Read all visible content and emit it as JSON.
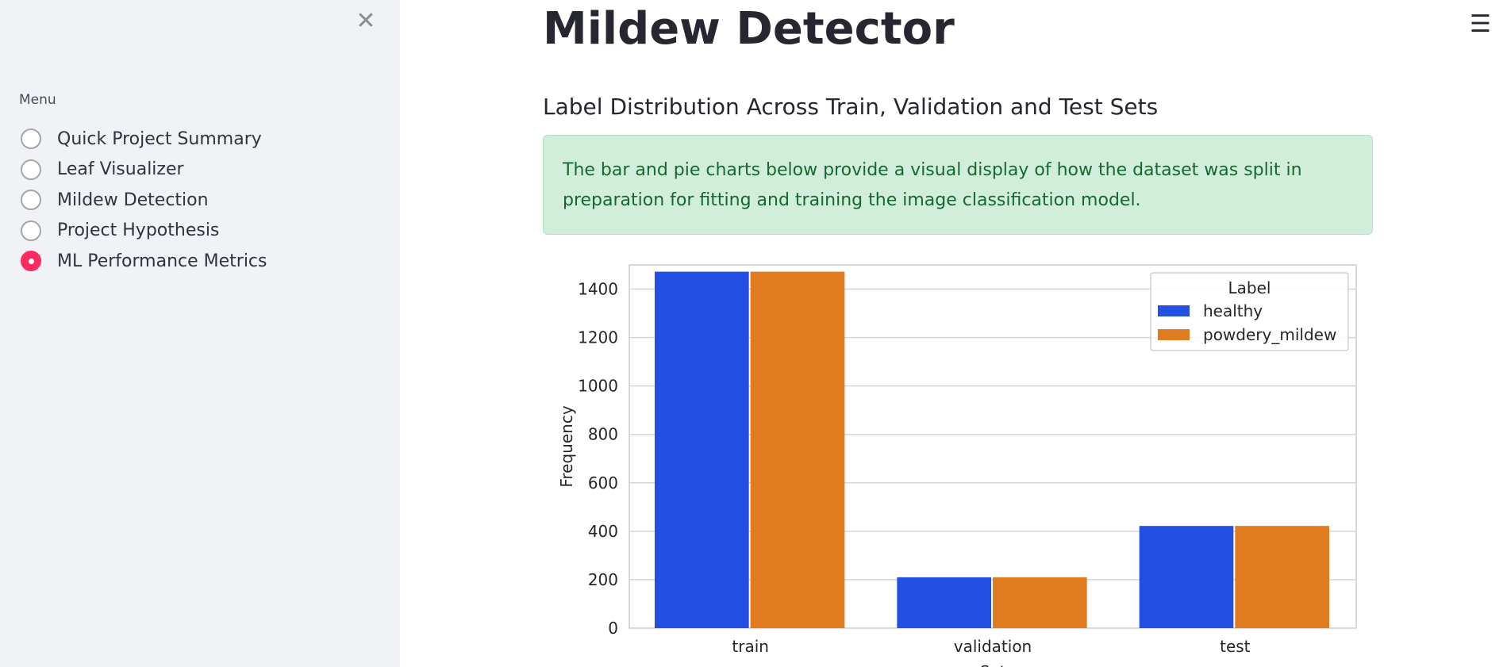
{
  "sidebar": {
    "close_icon": "close-icon",
    "menu_label": "Menu",
    "items": [
      {
        "label": "Quick Project Summary",
        "selected": false
      },
      {
        "label": "Leaf Visualizer",
        "selected": false
      },
      {
        "label": "Mildew Detection",
        "selected": false
      },
      {
        "label": "Project Hypothesis",
        "selected": false
      },
      {
        "label": "ML Performance Metrics",
        "selected": true
      }
    ],
    "accent_color": "#ff2b5e"
  },
  "header": {
    "menu_icon": "hamburger-menu-icon"
  },
  "main": {
    "title": "Mildew Detector",
    "subheader": "Label Distribution Across Train, Validation and Test Sets",
    "info_text": "The bar and pie charts below provide a visual display of how the dataset was split in preparation for fitting and training the image classification model."
  },
  "chart_data": {
    "type": "bar",
    "categories": [
      "train",
      "validation",
      "test"
    ],
    "series": [
      {
        "name": "healthy",
        "values": [
          1472,
          210,
          422
        ],
        "color": "#2350e3"
      },
      {
        "name": "powdery_mildew",
        "values": [
          1472,
          210,
          422
        ],
        "color": "#e07b20"
      }
    ],
    "legend_title": "Label",
    "legend_position": "top-right",
    "xlabel": "Set",
    "ylabel": "Frequency",
    "ylim": [
      0,
      1500
    ],
    "yticks": [
      0,
      200,
      400,
      600,
      800,
      1000,
      1200,
      1400
    ],
    "grid": true
  }
}
